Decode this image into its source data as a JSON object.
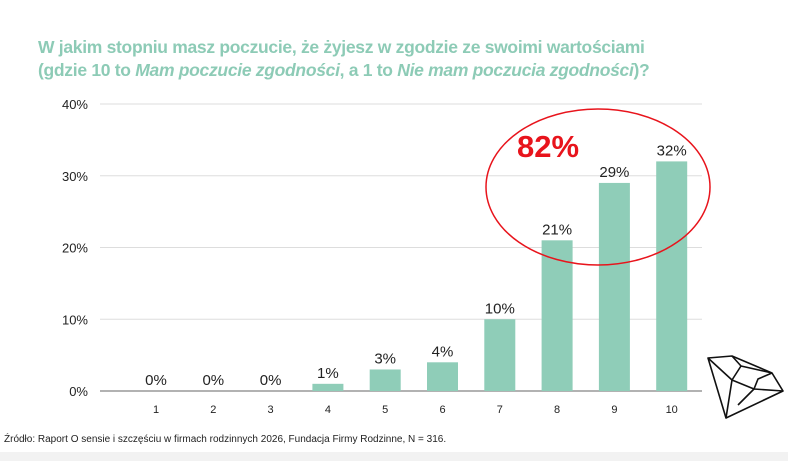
{
  "title": {
    "line1": "W jakim stopniu masz poczucie, że żyjesz w zgodzie ze swoimi wartościami",
    "line2_a": "(gdzie 10 to ",
    "line2_b": "Mam poczucie zgodności",
    "line2_c": ", a 1 to ",
    "line2_d": "Nie mam poczucia zgodności",
    "line2_e": ")?"
  },
  "highlight": {
    "label": "82%",
    "color": "#e8141c"
  },
  "source": "Źródło: Raport O sensie i szczęściu w firmach rodzinnych 2026, Fundacja Firmy Rodzinne, N = 316.",
  "chart_data": {
    "type": "bar",
    "categories": [
      "1",
      "2",
      "3",
      "4",
      "5",
      "6",
      "7",
      "8",
      "9",
      "10"
    ],
    "values": [
      0,
      0,
      0,
      1,
      3,
      4,
      10,
      21,
      29,
      32
    ],
    "value_labels": [
      "0%",
      "0%",
      "0%",
      "1%",
      "3%",
      "4%",
      "10%",
      "21%",
      "29%",
      "32%"
    ],
    "yticks": [
      "0%",
      "10%",
      "20%",
      "30%",
      "40%"
    ],
    "ylim": [
      0,
      40
    ],
    "grid": true,
    "bar_color": "#8fcdb8"
  }
}
